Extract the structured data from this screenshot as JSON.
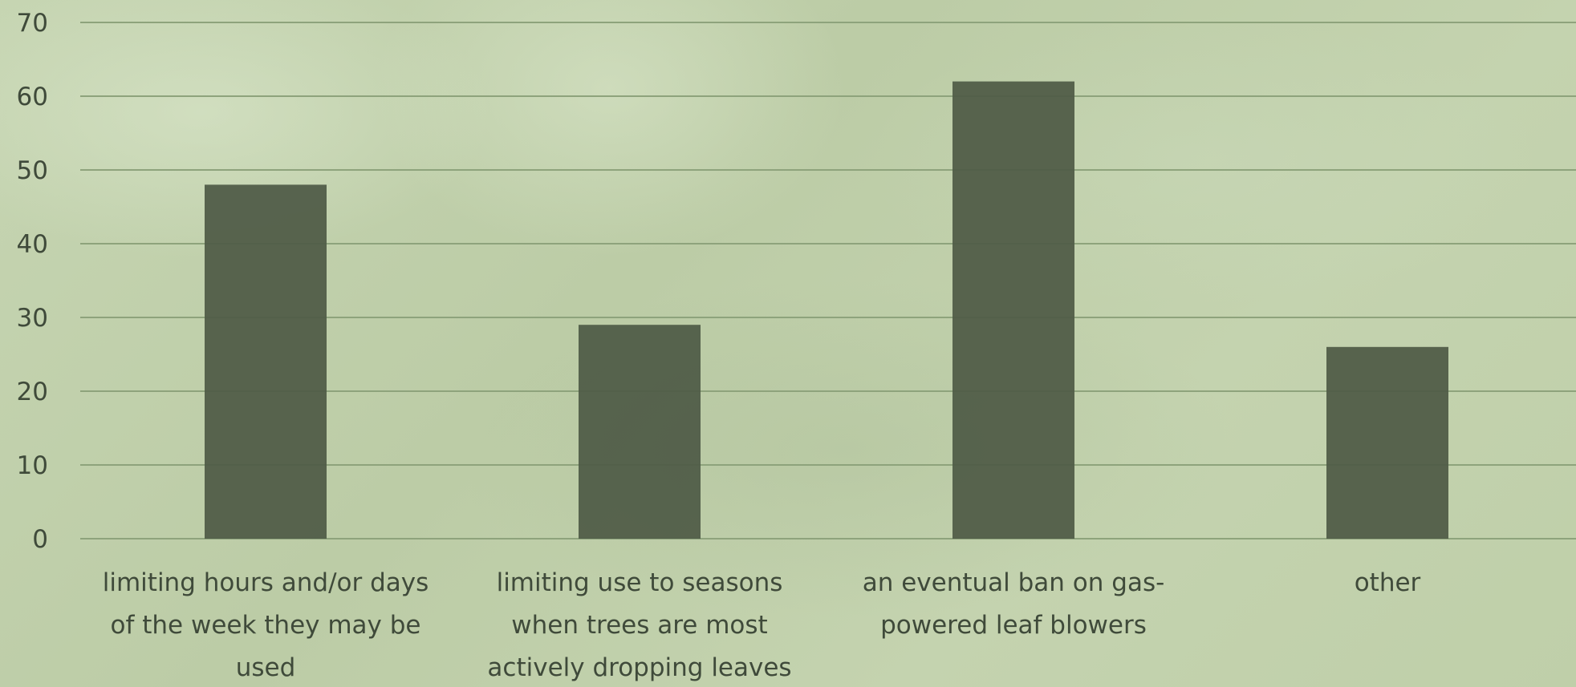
{
  "chart_data": {
    "type": "bar",
    "categories": [
      [
        "limiting hours and/or days",
        "of the week they may be",
        "used"
      ],
      [
        "limiting use to seasons",
        "when trees are most",
        "actively dropping leaves"
      ],
      [
        "an eventual ban on gas-",
        "powered leaf blowers"
      ],
      [
        "other"
      ]
    ],
    "values": [
      48,
      29,
      62,
      26
    ],
    "ylim": [
      0,
      70
    ],
    "yticks": [
      0,
      10,
      20,
      30,
      40,
      50,
      60,
      70
    ],
    "grid": true,
    "legend": "none",
    "colors": {
      "bar": "#4f5a46",
      "grid": "#8ea37c",
      "text": "#3f4a3a"
    }
  }
}
